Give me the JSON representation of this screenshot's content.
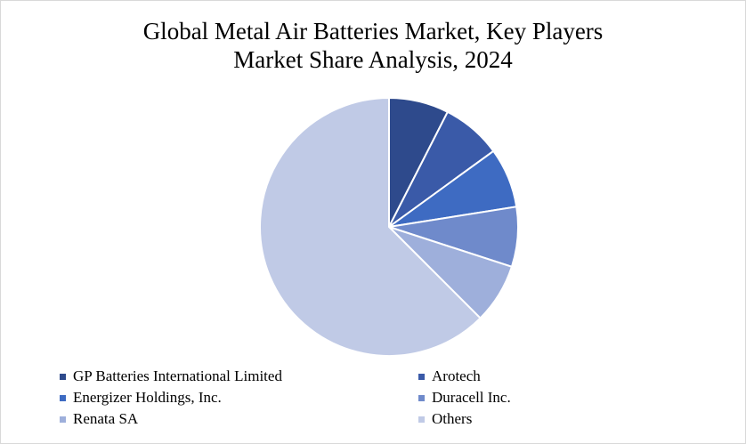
{
  "chart_data": {
    "type": "pie",
    "title_line1": "Global Metal Air Batteries Market, Key Players",
    "title_line2": "Market Share Analysis, 2024",
    "start": "12 o'clock, clockwise",
    "legend_placement": "bottom, two columns",
    "slices": [
      {
        "label": "GP Batteries International Limited",
        "value": 7.5,
        "color": "#2e4a8c"
      },
      {
        "label": "Arotech",
        "value": 7.5,
        "color": "#3a5aa8"
      },
      {
        "label": "Energizer Holdings, Inc.",
        "value": 7.5,
        "color": "#3e6bc2"
      },
      {
        "label": "Duracell Inc.",
        "value": 7.5,
        "color": "#6f8acb"
      },
      {
        "label": "Renata SA",
        "value": 7.5,
        "color": "#9eafdb"
      },
      {
        "label": "Others",
        "value": 62.5,
        "color": "#c0cae6"
      }
    ]
  }
}
